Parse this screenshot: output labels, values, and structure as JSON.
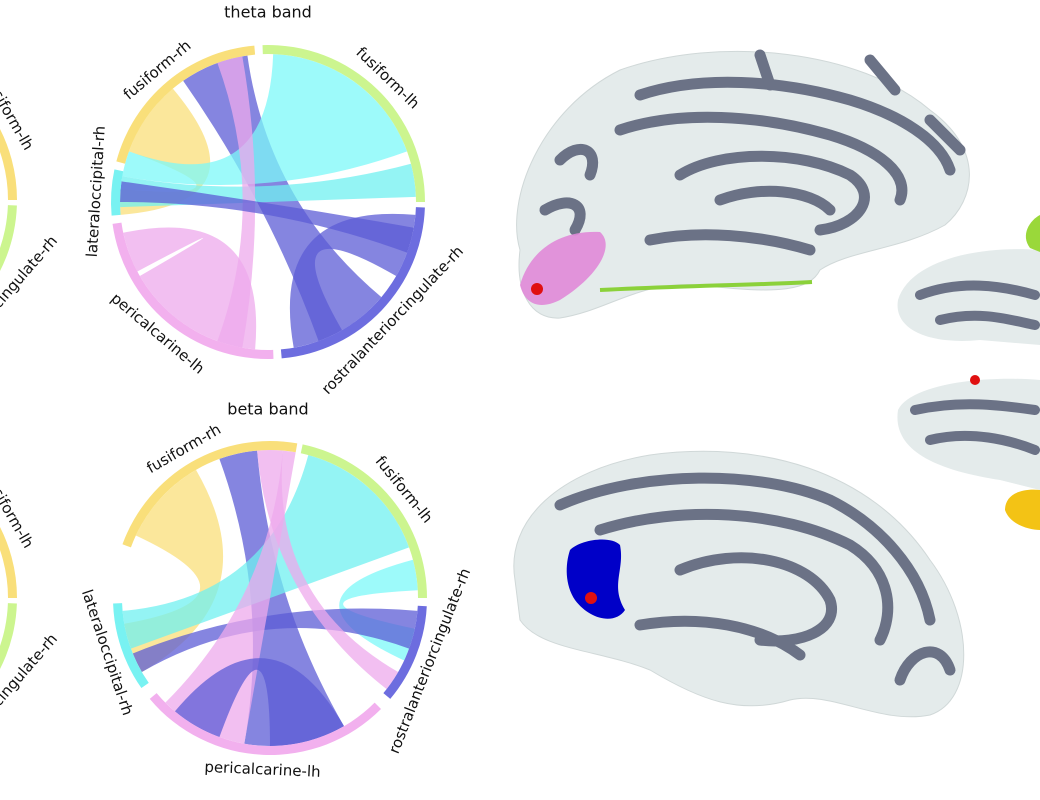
{
  "panels": [
    {
      "title": "theta band",
      "labels": [
        "fusiform-rh",
        "fusiform-lh",
        "rostralanteriorcingulate-rh",
        "pericalcarine-lh",
        "lateraloccipital-rh"
      ]
    },
    {
      "title": "beta band",
      "labels": [
        "fusiform-rh",
        "fusiform-lh",
        "rostralanteriorcingulate-rh",
        "pericalcarine-lh",
        "lateraloccipital-rh"
      ]
    }
  ],
  "cropped_panels": [
    {
      "labels": [
        "fusiform-lh",
        "rostralanteriorcingulate-rh"
      ]
    },
    {
      "labels": [
        "fusiform-lh",
        "rostralanteriorcingulate-rh"
      ]
    }
  ]
}
